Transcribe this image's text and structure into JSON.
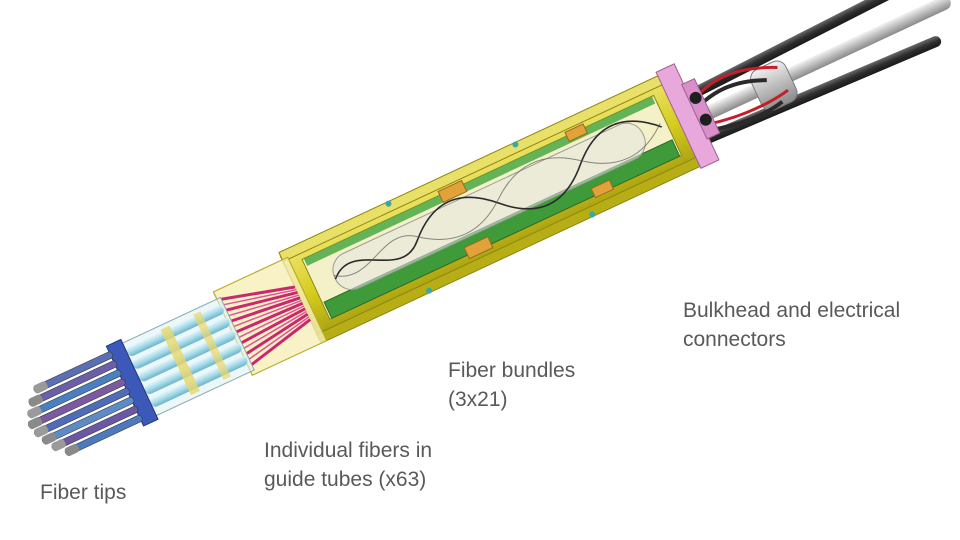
{
  "labels": {
    "fiber_tips": "Fiber tips",
    "guide_tubes": [
      "Individual fibers in",
      "guide tubes (x63)"
    ],
    "fiber_bundles": [
      "Fiber bundles",
      "(3x21)"
    ],
    "bulkhead": [
      "Bulkhead and electrical",
      "connectors"
    ]
  },
  "colors": {
    "frame_yellow": "#d8cf1c",
    "frame_edge": "#a29a12",
    "board_green": "#3f9a3a",
    "bulkhead_pink": "#e8a8dc",
    "fiber_magenta": "#c8286e",
    "tube_cyan": "#8ed8e8",
    "tip_blue": "#3c58b8",
    "cable_dark": "#3a3a3a",
    "label_text": "#595959"
  }
}
